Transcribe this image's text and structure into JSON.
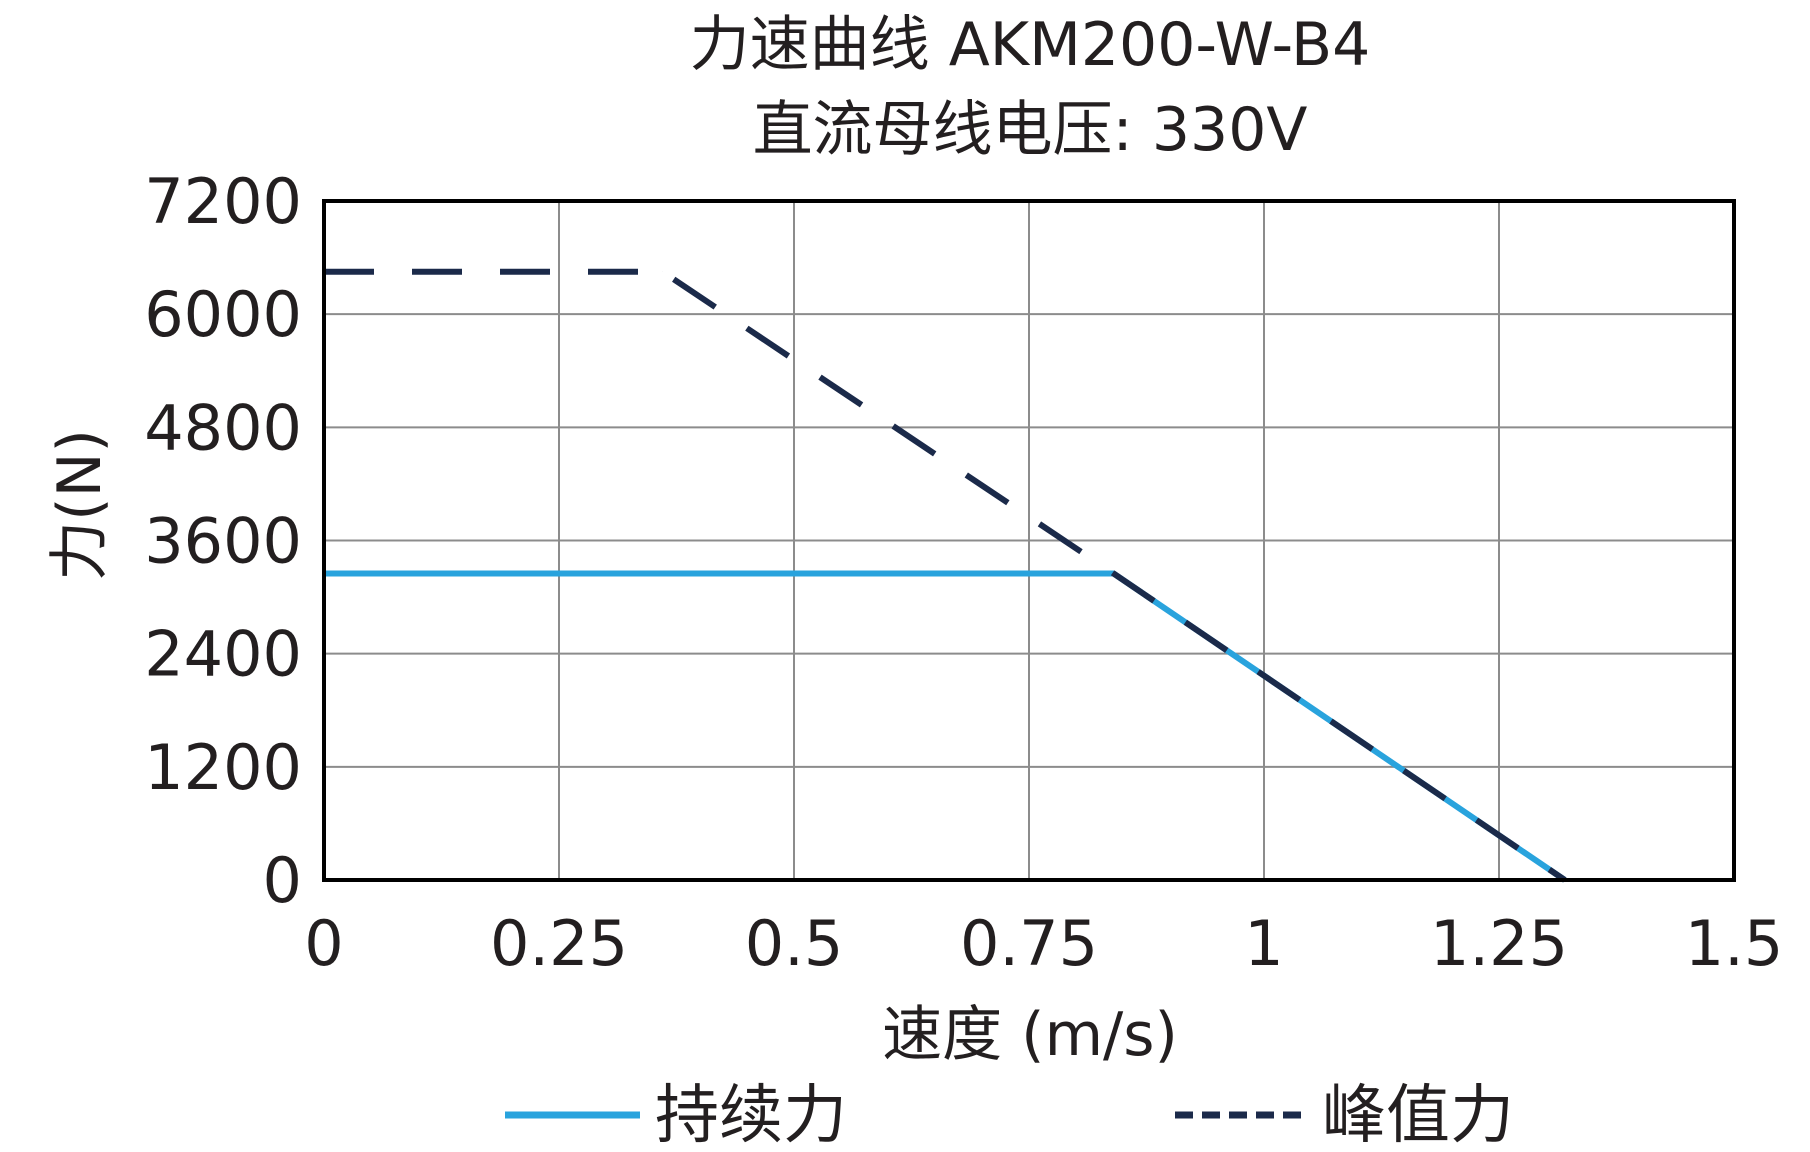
{
  "chart_data": {
    "type": "line",
    "title": "力速曲线 AKM200-W-B4",
    "subtitle": "直流母线电压: 330V",
    "xlabel": "速度 (m/s)",
    "ylabel": "力(N)",
    "xlim": [
      0,
      1.5
    ],
    "ylim": [
      0,
      7200
    ],
    "x_ticks": [
      "0",
      "0.25",
      "0.5",
      "0.75",
      "1",
      "1.25",
      "1.5"
    ],
    "y_ticks": [
      "0",
      "1200",
      "2400",
      "3600",
      "4800",
      "6000",
      "7200"
    ],
    "grid": true,
    "legend_position": "bottom",
    "series": [
      {
        "name": "持续力",
        "color": "#29a3dd",
        "style": "solid",
        "x": [
          0,
          0.84,
          1.32
        ],
        "y": [
          3250,
          3250,
          0
        ]
      },
      {
        "name": "峰值力",
        "color": "#1b2a4a",
        "style": "dashed",
        "x": [
          0,
          0.36,
          0.84,
          1.32
        ],
        "y": [
          6450,
          6450,
          3250,
          0
        ]
      }
    ]
  }
}
